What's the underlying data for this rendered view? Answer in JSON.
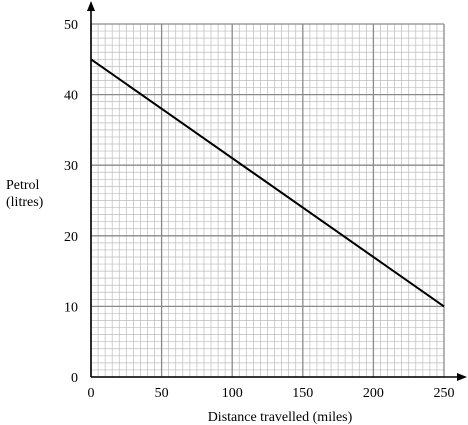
{
  "chart_data": {
    "type": "line",
    "xlabel": "Distance travelled (miles)",
    "ylabel_lines": [
      "Petrol",
      "(litres)"
    ],
    "xlim": [
      0,
      250
    ],
    "ylim": [
      0,
      50
    ],
    "x_ticks": [
      {
        "value": 0,
        "label": "0"
      },
      {
        "value": 50,
        "label": "50"
      },
      {
        "value": 100,
        "label": "100"
      },
      {
        "value": 150,
        "label": "150"
      },
      {
        "value": 200,
        "label": "200"
      },
      {
        "value": 250,
        "label": "250"
      }
    ],
    "y_ticks": [
      {
        "value": 0,
        "label": "0"
      },
      {
        "value": 10,
        "label": "10"
      },
      {
        "value": 20,
        "label": "20"
      },
      {
        "value": 30,
        "label": "30"
      },
      {
        "value": 40,
        "label": "40"
      },
      {
        "value": 50,
        "label": "50"
      }
    ],
    "grid": {
      "major_x": 50,
      "major_y": 10,
      "minor_x": 5,
      "minor_y": 1
    },
    "series": [
      {
        "x": [
          0,
          250
        ],
        "y": [
          45,
          10
        ],
        "color": "#000000"
      }
    ],
    "colors": {
      "minor_grid": "#bdbdbd",
      "major_grid": "#8a8a8a",
      "line": "#000000",
      "axis": "#000000"
    }
  }
}
